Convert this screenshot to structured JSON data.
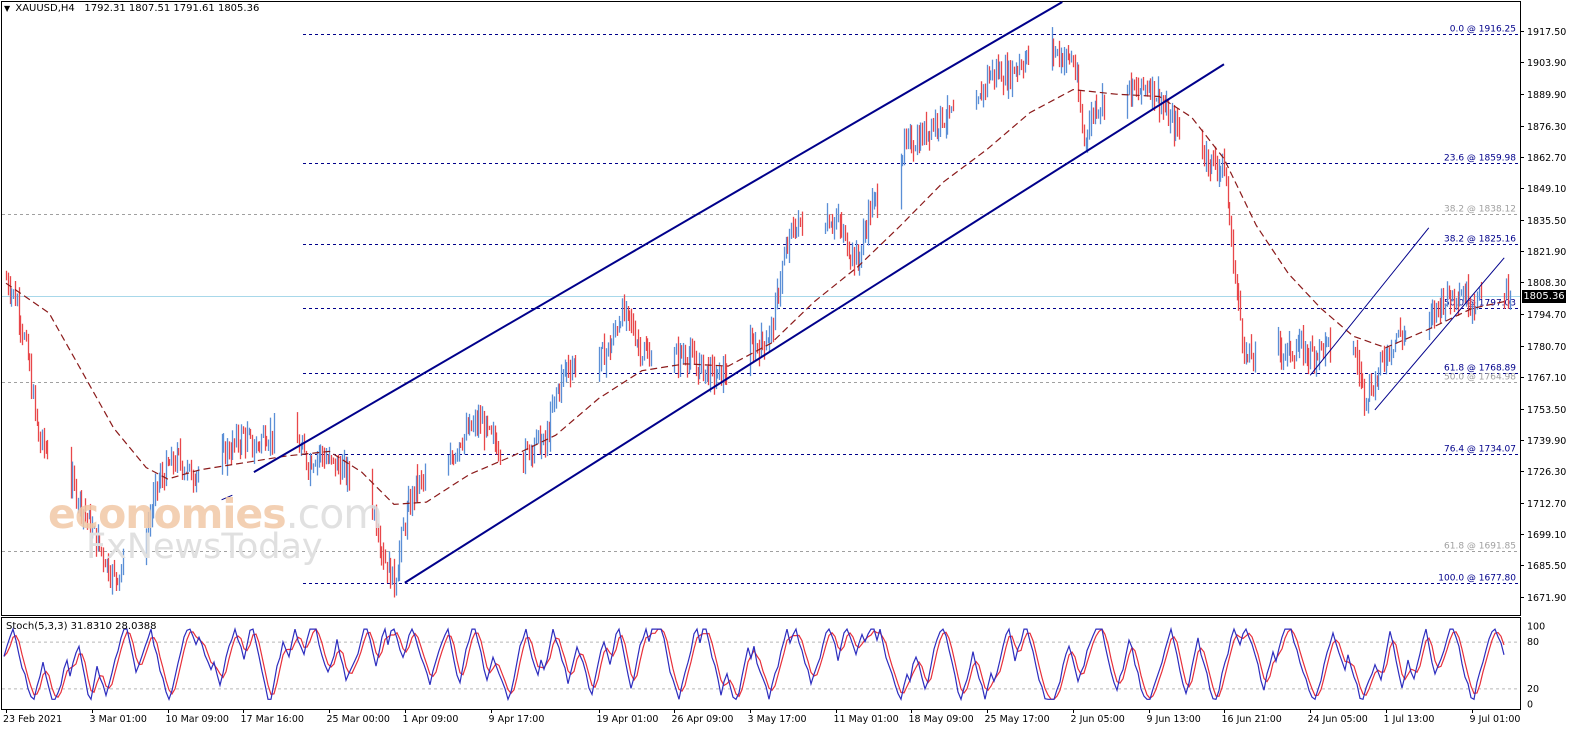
{
  "header": {
    "symbol_timeframe": "XAUUSD,H4",
    "ohlc": "1792.31 1807.51 1791.61 1805.36"
  },
  "watermark": {
    "line1_brand": "economies",
    "line1_suffix": ".com",
    "line2": "FxNewsToday"
  },
  "current_price": "1805.36",
  "stochastic": {
    "label": "Stoch(5,3,3) 31.8310 28.0388",
    "levels": [
      "100",
      "80",
      "20",
      "0"
    ]
  },
  "colors": {
    "bull": "#5b8fd6",
    "bear": "#e8474a",
    "ma": "#8b1a1a",
    "channel": "#00008b",
    "fib_main": "#00008b",
    "fib_secondary": "#a0a0a0",
    "stoch_main": "#2d2dbf",
    "stoch_signal": "#e8303a"
  },
  "chart_data": {
    "type": "candlestick",
    "instrument": "XAUUSD",
    "timeframe": "H4",
    "y_range": [
      1664.0,
      1930.0
    ],
    "price_ticks": [
      "1917.50",
      "1903.90",
      "1889.90",
      "1876.30",
      "1862.70",
      "1849.10",
      "1835.50",
      "1821.90",
      "1808.30",
      "1794.70",
      "1780.70",
      "1767.10",
      "1753.50",
      "1739.90",
      "1726.30",
      "1712.70",
      "1699.10",
      "1685.50",
      "1671.90"
    ],
    "x_range": [
      "2021-02-23",
      "2021-07-13"
    ],
    "time_labels": [
      {
        "label": "23 Feb 2021",
        "date": "2021-02-23"
      },
      {
        "label": "3 Mar 01:00",
        "date": "2021-03-03"
      },
      {
        "label": "10 Mar 09:00",
        "date": "2021-03-10"
      },
      {
        "label": "17 Mar 16:00",
        "date": "2021-03-17"
      },
      {
        "label": "25 Mar 00:00",
        "date": "2021-03-25"
      },
      {
        "label": "1 Apr 09:00",
        "date": "2021-04-01"
      },
      {
        "label": "9 Apr 17:00",
        "date": "2021-04-09"
      },
      {
        "label": "19 Apr 01:00",
        "date": "2021-04-19"
      },
      {
        "label": "26 Apr 09:00",
        "date": "2021-04-26"
      },
      {
        "label": "3 May 17:00",
        "date": "2021-05-03"
      },
      {
        "label": "11 May 01:00",
        "date": "2021-05-11"
      },
      {
        "label": "18 May 09:00",
        "date": "2021-05-18"
      },
      {
        "label": "25 May 17:00",
        "date": "2021-05-25"
      },
      {
        "label": "2 Jun 05:00",
        "date": "2021-06-02"
      },
      {
        "label": "9 Jun 13:00",
        "date": "2021-06-09"
      },
      {
        "label": "16 Jun 21:00",
        "date": "2021-06-16"
      },
      {
        "label": "24 Jun 05:00",
        "date": "2021-06-24"
      },
      {
        "label": "1 Jul 13:00",
        "date": "2021-07-01"
      },
      {
        "label": "9 Jul 01:00",
        "date": "2021-07-09"
      }
    ],
    "price_path": [
      {
        "date": "2021-02-23",
        "price": 1810
      },
      {
        "date": "2021-02-24",
        "price": 1800
      },
      {
        "date": "2021-02-25",
        "price": 1775
      },
      {
        "date": "2021-02-26",
        "price": 1740
      },
      {
        "date": "2021-03-01",
        "price": 1722
      },
      {
        "date": "2021-03-02",
        "price": 1712
      },
      {
        "date": "2021-03-03",
        "price": 1700
      },
      {
        "date": "2021-03-04",
        "price": 1690
      },
      {
        "date": "2021-03-05",
        "price": 1680
      },
      {
        "date": "2021-03-08",
        "price": 1700
      },
      {
        "date": "2021-03-09",
        "price": 1720
      },
      {
        "date": "2021-03-10",
        "price": 1728
      },
      {
        "date": "2021-03-11",
        "price": 1732
      },
      {
        "date": "2021-03-12",
        "price": 1725
      },
      {
        "date": "2021-03-15",
        "price": 1733
      },
      {
        "date": "2021-03-16",
        "price": 1737
      },
      {
        "date": "2021-03-17",
        "price": 1742
      },
      {
        "date": "2021-03-18",
        "price": 1736
      },
      {
        "date": "2021-03-19",
        "price": 1743
      },
      {
        "date": "2021-03-22",
        "price": 1738
      },
      {
        "date": "2021-03-23",
        "price": 1730
      },
      {
        "date": "2021-03-24",
        "price": 1735
      },
      {
        "date": "2021-03-25",
        "price": 1730
      },
      {
        "date": "2021-03-26",
        "price": 1728
      },
      {
        "date": "2021-03-29",
        "price": 1712
      },
      {
        "date": "2021-03-30",
        "price": 1690
      },
      {
        "date": "2021-03-31",
        "price": 1678
      },
      {
        "date": "2021-04-01",
        "price": 1705
      },
      {
        "date": "2021-04-02",
        "price": 1720
      },
      {
        "date": "2021-04-05",
        "price": 1728
      },
      {
        "date": "2021-04-06",
        "price": 1740
      },
      {
        "date": "2021-04-07",
        "price": 1744
      },
      {
        "date": "2021-04-08",
        "price": 1748
      },
      {
        "date": "2021-04-09",
        "price": 1740
      },
      {
        "date": "2021-04-12",
        "price": 1732
      },
      {
        "date": "2021-04-13",
        "price": 1740
      },
      {
        "date": "2021-04-14",
        "price": 1737
      },
      {
        "date": "2021-04-15",
        "price": 1760
      },
      {
        "date": "2021-04-16",
        "price": 1772
      },
      {
        "date": "2021-04-19",
        "price": 1775
      },
      {
        "date": "2021-04-20",
        "price": 1780
      },
      {
        "date": "2021-04-21",
        "price": 1795
      },
      {
        "date": "2021-04-22",
        "price": 1790
      },
      {
        "date": "2021-04-23",
        "price": 1778
      },
      {
        "date": "2021-04-26",
        "price": 1775
      },
      {
        "date": "2021-04-27",
        "price": 1778
      },
      {
        "date": "2021-04-28",
        "price": 1772
      },
      {
        "date": "2021-04-29",
        "price": 1770
      },
      {
        "date": "2021-04-30",
        "price": 1767
      },
      {
        "date": "2021-05-03",
        "price": 1780
      },
      {
        "date": "2021-05-04",
        "price": 1782
      },
      {
        "date": "2021-05-05",
        "price": 1787
      },
      {
        "date": "2021-05-06",
        "price": 1815
      },
      {
        "date": "2021-05-07",
        "price": 1832
      },
      {
        "date": "2021-05-10",
        "price": 1837
      },
      {
        "date": "2021-05-11",
        "price": 1835
      },
      {
        "date": "2021-05-12",
        "price": 1825
      },
      {
        "date": "2021-05-13",
        "price": 1817
      },
      {
        "date": "2021-05-14",
        "price": 1838
      },
      {
        "date": "2021-05-17",
        "price": 1865
      },
      {
        "date": "2021-05-18",
        "price": 1869
      },
      {
        "date": "2021-05-19",
        "price": 1872
      },
      {
        "date": "2021-05-20",
        "price": 1878
      },
      {
        "date": "2021-05-21",
        "price": 1880
      },
      {
        "date": "2021-05-24",
        "price": 1882
      },
      {
        "date": "2021-05-25",
        "price": 1898
      },
      {
        "date": "2021-05-26",
        "price": 1900
      },
      {
        "date": "2021-05-27",
        "price": 1898
      },
      {
        "date": "2021-05-28",
        "price": 1904
      },
      {
        "date": "2021-05-31",
        "price": 1910
      },
      {
        "date": "2021-06-01",
        "price": 1906
      },
      {
        "date": "2021-06-02",
        "price": 1905
      },
      {
        "date": "2021-06-03",
        "price": 1870
      },
      {
        "date": "2021-06-04",
        "price": 1885
      },
      {
        "date": "2021-06-07",
        "price": 1893
      },
      {
        "date": "2021-06-08",
        "price": 1890
      },
      {
        "date": "2021-06-09",
        "price": 1895
      },
      {
        "date": "2021-06-10",
        "price": 1888
      },
      {
        "date": "2021-06-11",
        "price": 1878
      },
      {
        "date": "2021-06-14",
        "price": 1865
      },
      {
        "date": "2021-06-15",
        "price": 1860
      },
      {
        "date": "2021-06-16",
        "price": 1858
      },
      {
        "date": "2021-06-17",
        "price": 1810
      },
      {
        "date": "2021-06-18",
        "price": 1775
      },
      {
        "date": "2021-06-21",
        "price": 1780
      },
      {
        "date": "2021-06-22",
        "price": 1778
      },
      {
        "date": "2021-06-23",
        "price": 1780
      },
      {
        "date": "2021-06-24",
        "price": 1777
      },
      {
        "date": "2021-06-25",
        "price": 1780
      },
      {
        "date": "2021-06-28",
        "price": 1780
      },
      {
        "date": "2021-06-29",
        "price": 1760
      },
      {
        "date": "2021-06-30",
        "price": 1765
      },
      {
        "date": "2021-07-01",
        "price": 1778
      },
      {
        "date": "2021-07-02",
        "price": 1785
      },
      {
        "date": "2021-07-05",
        "price": 1790
      },
      {
        "date": "2021-07-06",
        "price": 1800
      },
      {
        "date": "2021-07-07",
        "price": 1803
      },
      {
        "date": "2021-07-08",
        "price": 1805
      },
      {
        "date": "2021-07-09",
        "price": 1800
      },
      {
        "date": "2021-07-12",
        "price": 1805.36
      }
    ],
    "moving_average_path": [
      {
        "date": "2021-02-23",
        "price": 1808
      },
      {
        "date": "2021-02-27",
        "price": 1795
      },
      {
        "date": "2021-03-02",
        "price": 1770
      },
      {
        "date": "2021-03-05",
        "price": 1745
      },
      {
        "date": "2021-03-08",
        "price": 1728
      },
      {
        "date": "2021-03-10",
        "price": 1723
      },
      {
        "date": "2021-03-13",
        "price": 1727
      },
      {
        "date": "2021-03-17",
        "price": 1730
      },
      {
        "date": "2021-03-21",
        "price": 1733
      },
      {
        "date": "2021-03-25",
        "price": 1735
      },
      {
        "date": "2021-03-28",
        "price": 1726
      },
      {
        "date": "2021-03-31",
        "price": 1712
      },
      {
        "date": "2021-04-03",
        "price": 1713
      },
      {
        "date": "2021-04-07",
        "price": 1725
      },
      {
        "date": "2021-04-11",
        "price": 1733
      },
      {
        "date": "2021-04-15",
        "price": 1742
      },
      {
        "date": "2021-04-19",
        "price": 1758
      },
      {
        "date": "2021-04-23",
        "price": 1770
      },
      {
        "date": "2021-04-27",
        "price": 1773
      },
      {
        "date": "2021-05-01",
        "price": 1772
      },
      {
        "date": "2021-05-05",
        "price": 1782
      },
      {
        "date": "2021-05-09",
        "price": 1800
      },
      {
        "date": "2021-05-13",
        "price": 1815
      },
      {
        "date": "2021-05-17",
        "price": 1833
      },
      {
        "date": "2021-05-21",
        "price": 1852
      },
      {
        "date": "2021-05-25",
        "price": 1866
      },
      {
        "date": "2021-05-29",
        "price": 1882
      },
      {
        "date": "2021-06-02",
        "price": 1892
      },
      {
        "date": "2021-06-06",
        "price": 1890
      },
      {
        "date": "2021-06-10",
        "price": 1889
      },
      {
        "date": "2021-06-13",
        "price": 1880
      },
      {
        "date": "2021-06-16",
        "price": 1862
      },
      {
        "date": "2021-06-19",
        "price": 1833
      },
      {
        "date": "2021-06-22",
        "price": 1812
      },
      {
        "date": "2021-06-25",
        "price": 1797
      },
      {
        "date": "2021-06-28",
        "price": 1785
      },
      {
        "date": "2021-07-01",
        "price": 1780
      },
      {
        "date": "2021-07-05",
        "price": 1788
      },
      {
        "date": "2021-07-09",
        "price": 1797
      },
      {
        "date": "2021-07-12",
        "price": 1800
      }
    ],
    "fibonacci_main": [
      {
        "label": "0.0 @ 1916.25",
        "price": 1916.25
      },
      {
        "label": "23.6 @ 1859.98",
        "price": 1859.98
      },
      {
        "label": "38.2 @ 1825.16",
        "price": 1825.16
      },
      {
        "label": "50.0 @ 1797.03",
        "price": 1797.03
      },
      {
        "label": "61.8 @ 1768.89",
        "price": 1768.89
      },
      {
        "label": "76.4 @ 1734.07",
        "price": 1734.07
      },
      {
        "label": "100.0 @ 1677.80",
        "price": 1677.8
      }
    ],
    "fibonacci_secondary": [
      {
        "label": "38.2 @ 1838.12",
        "price": 1838.12
      },
      {
        "label": "50.0 @ 1764.98",
        "price": 1764.98
      },
      {
        "label": "61.8 @ 1691.85",
        "price": 1691.85
      }
    ],
    "channels": [
      {
        "name": "upper",
        "from": {
          "date": "2021-03-18",
          "price": 1726
        },
        "to": {
          "date": "2021-06-01",
          "price": 1930
        }
      },
      {
        "name": "lower",
        "from": {
          "date": "2021-04-01",
          "price": 1678
        },
        "to": {
          "date": "2021-06-16",
          "price": 1903
        }
      },
      {
        "name": "flag-upper",
        "from": {
          "date": "2021-06-24",
          "price": 1768
        },
        "to": {
          "date": "2021-07-05",
          "price": 1832
        }
      },
      {
        "name": "flag-lower",
        "from": {
          "date": "2021-06-30",
          "price": 1753
        },
        "to": {
          "date": "2021-07-12",
          "price": 1819
        }
      },
      {
        "name": "mini",
        "from": {
          "date": "2021-03-15",
          "price": 1714
        },
        "to": {
          "date": "2021-03-16",
          "price": 1716
        }
      }
    ]
  }
}
